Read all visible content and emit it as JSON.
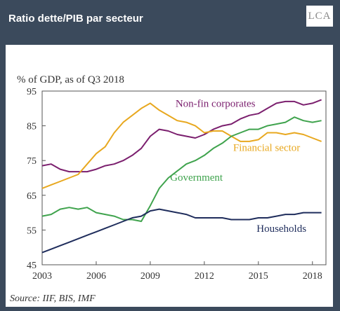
{
  "header": {
    "title": "Ratio dette/PIB par secteur",
    "logo_text": "LCA"
  },
  "source": "Source: IIF, BIS, IMF",
  "colors": {
    "background": "#3b4a5c",
    "households": "#1f2d5c",
    "government": "#3fa34d",
    "financial": "#e8a81f",
    "nonfin": "#7b1f6e",
    "axis_text": "#333333"
  },
  "chart_data": {
    "type": "line",
    "ylabel": "% of GDP, as of Q3 2018",
    "ylim": [
      45,
      95
    ],
    "yticks": [
      45,
      55,
      65,
      75,
      85,
      95
    ],
    "xlim": [
      2003,
      2018.75
    ],
    "xticks": [
      2003,
      2006,
      2009,
      2012,
      2015,
      2018
    ],
    "grid": false,
    "series": [
      {
        "name": "Non-fin corporates",
        "color": "#7b1f6e",
        "x": [
          2003,
          2003.5,
          2004,
          2004.5,
          2005,
          2005.5,
          2006,
          2006.5,
          2007,
          2007.5,
          2008,
          2008.5,
          2009,
          2009.5,
          2010,
          2010.5,
          2011,
          2011.5,
          2012,
          2012.5,
          2013,
          2013.5,
          2014,
          2014.5,
          2015,
          2015.5,
          2016,
          2016.5,
          2017,
          2017.5,
          2018,
          2018.5
        ],
        "y": [
          73.5,
          74,
          72.5,
          71.8,
          71.8,
          71.8,
          72.5,
          73.5,
          74,
          75,
          76.5,
          78.5,
          82,
          84,
          83.5,
          82.5,
          82,
          81.5,
          82.5,
          84,
          85,
          85.5,
          87,
          88,
          88.5,
          90,
          91.5,
          92,
          92,
          91,
          91.5,
          92.5
        ]
      },
      {
        "name": "Financial sector",
        "color": "#e8a81f",
        "x": [
          2003,
          2003.5,
          2004,
          2004.5,
          2005,
          2005.5,
          2006,
          2006.5,
          2007,
          2007.5,
          2008,
          2008.5,
          2009,
          2009.5,
          2010,
          2010.5,
          2011,
          2011.5,
          2012,
          2012.5,
          2013,
          2013.5,
          2014,
          2014.5,
          2015,
          2015.5,
          2016,
          2016.5,
          2017,
          2017.5,
          2018,
          2018.5
        ],
        "y": [
          67,
          68,
          69,
          70,
          71,
          74,
          77,
          79,
          83,
          86,
          88,
          90,
          91.5,
          89.5,
          88,
          86.5,
          86,
          85,
          83,
          83.5,
          83.5,
          82,
          80.5,
          80.5,
          81,
          83,
          83,
          82.5,
          83,
          82.5,
          81.5,
          80.5
        ]
      },
      {
        "name": "Government",
        "color": "#3fa34d",
        "x": [
          2003,
          2003.5,
          2004,
          2004.5,
          2005,
          2005.5,
          2006,
          2006.5,
          2007,
          2007.5,
          2008,
          2008.5,
          2009,
          2009.5,
          2010,
          2010.5,
          2011,
          2011.5,
          2012,
          2012.5,
          2013,
          2013.5,
          2014,
          2014.5,
          2015,
          2015.5,
          2016,
          2016.5,
          2017,
          2017.5,
          2018,
          2018.5
        ],
        "y": [
          59,
          59.5,
          61,
          61.5,
          61,
          61.5,
          60,
          59.5,
          59,
          58,
          58,
          57.5,
          62,
          67,
          70,
          72,
          74,
          75,
          76.5,
          78.5,
          80,
          82,
          83,
          84,
          84,
          85,
          85.5,
          86,
          87.5,
          86.5,
          86,
          86.5
        ]
      },
      {
        "name": "Households",
        "color": "#1f2d5c",
        "x": [
          2003,
          2003.5,
          2004,
          2004.5,
          2005,
          2005.5,
          2006,
          2006.5,
          2007,
          2007.5,
          2008,
          2008.5,
          2009,
          2009.5,
          2010,
          2010.5,
          2011,
          2011.5,
          2012,
          2012.5,
          2013,
          2013.5,
          2014,
          2014.5,
          2015,
          2015.5,
          2016,
          2016.5,
          2017,
          2017.5,
          2018,
          2018.5
        ],
        "y": [
          48.5,
          49.5,
          50.5,
          51.5,
          52.5,
          53.5,
          54.5,
          55.5,
          56.5,
          57.5,
          58.5,
          59,
          60.5,
          61,
          60.5,
          60,
          59.5,
          58.5,
          58.5,
          58.5,
          58.5,
          58,
          58,
          58,
          58.5,
          58.5,
          59,
          59.5,
          59.5,
          60,
          60,
          60
        ]
      }
    ],
    "annotations": [
      {
        "text": "Non-fin corporates",
        "x": 2010.4,
        "y": 90.5,
        "color": "#7b1f6e",
        "anchor": "start"
      },
      {
        "text": "Financial sector",
        "x": 2013.6,
        "y": 77.8,
        "color": "#e8a81f",
        "anchor": "start"
      },
      {
        "text": "Government",
        "x": 2010.1,
        "y": 69.2,
        "color": "#3fa34d",
        "anchor": "start"
      },
      {
        "text": "Households",
        "x": 2014.9,
        "y": 54.5,
        "color": "#1f2d5c",
        "anchor": "start"
      }
    ]
  }
}
